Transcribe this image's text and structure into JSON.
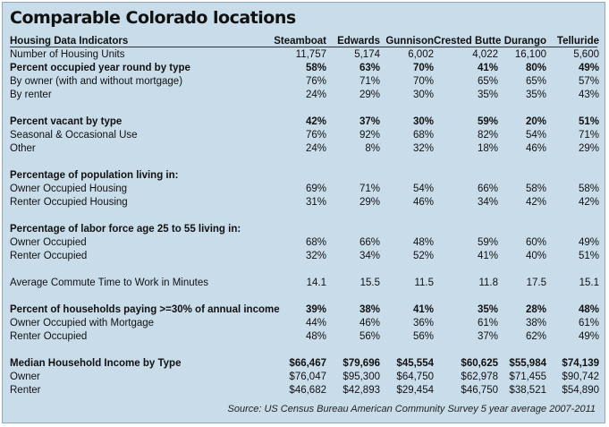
{
  "title": "Comparable Colorado locations",
  "header": {
    "indicator_label": "Housing Data Indicators",
    "locations": [
      "Steamboat",
      "Edwards",
      "Gunnison",
      "Crested Butte",
      "Durango",
      "Telluride"
    ]
  },
  "rows": [
    {
      "type": "data",
      "label": "Number of Housing Units",
      "values": [
        "11,757",
        "5,174",
        "6,002",
        "4,022",
        "16,100",
        "5,600"
      ]
    },
    {
      "type": "bold",
      "label": "Percent occupied year round by type",
      "values": [
        "58%",
        "63%",
        "70%",
        "41%",
        "80%",
        "49%"
      ]
    },
    {
      "type": "data",
      "label": "By owner (with and without mortgage)",
      "values": [
        "76%",
        "71%",
        "70%",
        "65%",
        "65%",
        "57%"
      ]
    },
    {
      "type": "data",
      "label": "By renter",
      "values": [
        "24%",
        "29%",
        "30%",
        "35%",
        "35%",
        "43%"
      ]
    },
    {
      "type": "spacer"
    },
    {
      "type": "bold",
      "label": "Percent vacant by type",
      "values": [
        "42%",
        "37%",
        "30%",
        "59%",
        "20%",
        "51%"
      ]
    },
    {
      "type": "data",
      "label": "Seasonal & Occasional Use",
      "values": [
        "76%",
        "92%",
        "68%",
        "82%",
        "54%",
        "71%"
      ]
    },
    {
      "type": "data",
      "label": "Other",
      "values": [
        "24%",
        "8%",
        "32%",
        "18%",
        "46%",
        "29%"
      ]
    },
    {
      "type": "spacer"
    },
    {
      "type": "section",
      "label": "Percentage of population living in:",
      "values": [
        "",
        "",
        "",
        "",
        "",
        ""
      ]
    },
    {
      "type": "data",
      "label": "Owner Occupied Housing",
      "values": [
        "69%",
        "71%",
        "54%",
        "66%",
        "58%",
        "58%"
      ]
    },
    {
      "type": "data",
      "label": "Renter Occupied Housing",
      "values": [
        "31%",
        "29%",
        "46%",
        "34%",
        "42%",
        "42%"
      ]
    },
    {
      "type": "spacer"
    },
    {
      "type": "section",
      "label": "Percentage of labor force age 25 to 55 living in:",
      "values": [
        "",
        "",
        "",
        "",
        "",
        ""
      ]
    },
    {
      "type": "data",
      "label": "Owner Occupied",
      "values": [
        "68%",
        "66%",
        "48%",
        "59%",
        "60%",
        "49%"
      ]
    },
    {
      "type": "data",
      "label": "Renter Occupied",
      "values": [
        "32%",
        "34%",
        "52%",
        "41%",
        "40%",
        "51%"
      ]
    },
    {
      "type": "spacer"
    },
    {
      "type": "data",
      "label": "Average Commute Time to Work in Minutes",
      "values": [
        "14.1",
        "15.5",
        "11.5",
        "11.8",
        "17.5",
        "15.1"
      ]
    },
    {
      "type": "spacer"
    },
    {
      "type": "bold",
      "label": "Percent of households paying >=30% of annual income",
      "values": [
        "39%",
        "38%",
        "41%",
        "35%",
        "28%",
        "48%"
      ]
    },
    {
      "type": "data",
      "label": "Owner Occupied with Mortgage",
      "values": [
        "44%",
        "46%",
        "36%",
        "61%",
        "38%",
        "61%"
      ]
    },
    {
      "type": "data",
      "label": "Renter Occupied",
      "values": [
        "48%",
        "56%",
        "56%",
        "37%",
        "62%",
        "49%"
      ]
    },
    {
      "type": "spacer"
    },
    {
      "type": "bold",
      "label": "Median Household Income by Type",
      "values": [
        "$66,467",
        "$79,696",
        "$45,554",
        "$60,625",
        "$55,984",
        "$74,139"
      ]
    },
    {
      "type": "data",
      "label": "Owner",
      "values": [
        "$76,047",
        "$95,300",
        "$64,750",
        "$62,978",
        "$71,455",
        "$90,742"
      ]
    },
    {
      "type": "data",
      "label": "Renter",
      "values": [
        "$46,682",
        "$42,893",
        "$29,454",
        "$46,750",
        "$38,521",
        "$54,890"
      ]
    }
  ],
  "source": "Source: US Census Bureau American Community Survey 5 year average 2007-2011",
  "colors": {
    "panel_bg": "#c9dcea",
    "border": "#8fa9bd"
  }
}
